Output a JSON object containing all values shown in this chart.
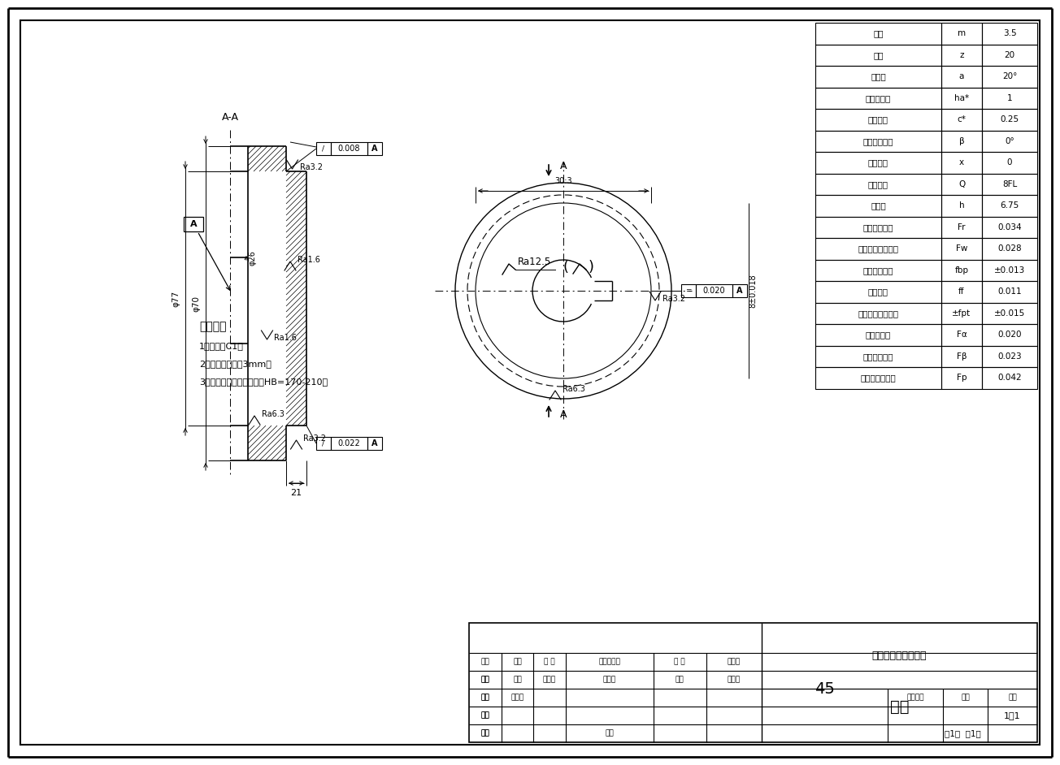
{
  "bg_color": "#ffffff",
  "fig_w": 13.04,
  "fig_h": 9.42,
  "dpi": 100,
  "table_rows": [
    [
      "模数",
      "m",
      "3.5"
    ],
    [
      "齿数",
      "z",
      "20"
    ],
    [
      "压力角",
      "a",
      "20°"
    ],
    [
      "齿顶高系数",
      "ha*",
      "1"
    ],
    [
      "顶隙系数",
      "c*",
      "0.25"
    ],
    [
      "分度圆螺旋角",
      "β",
      "0°"
    ],
    [
      "变位系数",
      "x",
      "0"
    ],
    [
      "精度等级",
      "Q",
      "8FL"
    ],
    [
      "全齿高",
      "h",
      "6.75"
    ],
    [
      "径向跳动系数",
      "Fr",
      "0.034"
    ],
    [
      "法线长度变动公差",
      "Fw",
      "0.028"
    ],
    [
      "基节极限偏差",
      "fbp",
      "±0.013"
    ],
    [
      "齿形公差",
      "ff",
      "0.011"
    ],
    [
      "单个齿距极限偏差",
      "±fpt",
      "±0.015"
    ],
    [
      "齿廓总偏差",
      "Fα",
      "0.020"
    ],
    [
      "螺旋线总偏差",
      "Fβ",
      "0.023"
    ],
    [
      "齿距累积总偏差",
      "Fp",
      "0.042"
    ]
  ],
  "tech_req_title": "技术要求",
  "tech_req": [
    "1、倒角为C1；",
    "2、铸造圆角半径3mm；",
    "3、调质处理后齿面硬度为HB=170-210。"
  ],
  "material": "45",
  "company": "太原学院机械工程系",
  "part_name": "齿轮",
  "drafter": "范思畅",
  "scale_val": "1：1",
  "sheet_info": "共1张  第1张"
}
